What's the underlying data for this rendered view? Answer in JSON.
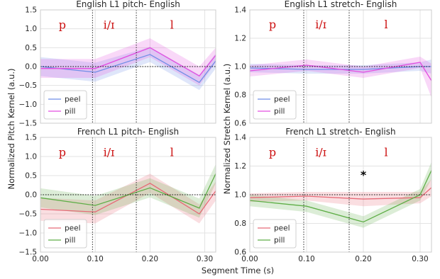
{
  "figure": {
    "ylabel_left": "Normalized Pitch Kernel (a.u.)",
    "ylabel_right": "Normalized Stretch Kernel (a.u.)",
    "xlabel": "Segment Time (s)"
  },
  "colors": {
    "peel_blue": "#6f8ee6",
    "pill_magenta": "#e34de0",
    "peel_red": "#e66b78",
    "pill_green": "#5fae47",
    "segment_label": "#cc1111"
  },
  "chart_data": [
    {
      "type": "line",
      "title": "English L1 pitch- English",
      "xlim": [
        0,
        0.32
      ],
      "ylim": [
        -1.5,
        1.5
      ],
      "xticks": [
        0.0,
        0.1,
        0.2,
        0.3
      ],
      "xtick_labels": [
        "0.00",
        "0.10",
        "0.20",
        "0.30"
      ],
      "yticks": [
        -1.5,
        -1.0,
        -0.5,
        0.0,
        0.5,
        1.0,
        1.5
      ],
      "ytick_labels": [
        "−1.5",
        "−1.0",
        "−0.5",
        "0.0",
        "0.5",
        "1.0",
        "1.5"
      ],
      "show_xtick_labels": false,
      "segments": [
        "p",
        "i/ɪ",
        "l"
      ],
      "segment_x": [
        0.04,
        0.125,
        0.24
      ],
      "segment_y": 1.12,
      "boundaries": [
        0.095,
        0.175
      ],
      "reference_y": 0.0,
      "annotations": [],
      "legend": "lower-left",
      "series": [
        {
          "name": "peel",
          "color": "#6f8ee6",
          "x": [
            0.0,
            0.1,
            0.2,
            0.29,
            0.32
          ],
          "y": [
            0.0,
            -0.15,
            0.32,
            -0.42,
            0.15
          ],
          "band": [
            0.25,
            0.25,
            0.2,
            0.2,
            0.2
          ]
        },
        {
          "name": "pill",
          "color": "#e34de0",
          "x": [
            0.0,
            0.1,
            0.2,
            0.29,
            0.32
          ],
          "y": [
            -0.05,
            -0.05,
            0.5,
            -0.25,
            0.3
          ],
          "band": [
            0.25,
            0.25,
            0.25,
            0.25,
            0.2
          ]
        }
      ]
    },
    {
      "type": "line",
      "title": "English L1 stretch- English",
      "xlim": [
        0,
        0.32
      ],
      "ylim": [
        0.6,
        1.4
      ],
      "xticks": [
        0.0,
        0.1,
        0.2,
        0.3
      ],
      "xtick_labels": [
        "0.00",
        "0.10",
        "0.20",
        "0.30"
      ],
      "yticks": [
        0.6,
        0.8,
        1.0,
        1.2,
        1.4
      ],
      "ytick_labels": [
        "0.6",
        "0.8",
        "1.0",
        "1.2",
        "1.4"
      ],
      "show_xtick_labels": false,
      "segments": [
        "p",
        "i/ɪ",
        "l"
      ],
      "segment_x": [
        0.04,
        0.125,
        0.24
      ],
      "segment_y": 1.3,
      "boundaries": [
        0.095,
        0.175
      ],
      "reference_y": 1.0,
      "annotations": [],
      "legend": "lower-left",
      "series": [
        {
          "name": "peel",
          "color": "#6f8ee6",
          "x": [
            0.0,
            0.1,
            0.2,
            0.3,
            0.32
          ],
          "y": [
            0.99,
            0.98,
            0.98,
            1.0,
            1.0
          ],
          "band": [
            0.03,
            0.03,
            0.03,
            0.03,
            0.05
          ]
        },
        {
          "name": "pill",
          "color": "#e34de0",
          "x": [
            0.0,
            0.1,
            0.2,
            0.3,
            0.32
          ],
          "y": [
            0.97,
            1.01,
            0.96,
            1.03,
            0.9
          ],
          "band": [
            0.04,
            0.04,
            0.04,
            0.04,
            0.12
          ]
        }
      ]
    },
    {
      "type": "line",
      "title": "French L1 pitch- English",
      "xlim": [
        0,
        0.32
      ],
      "ylim": [
        -1.5,
        1.5
      ],
      "xticks": [
        0.0,
        0.1,
        0.2,
        0.3
      ],
      "xtick_labels": [
        "0.00",
        "0.10",
        "0.20",
        "0.30"
      ],
      "yticks": [
        -1.5,
        -1.0,
        -0.5,
        0.0,
        0.5,
        1.0,
        1.5
      ],
      "ytick_labels": [
        "−1.5",
        "−1.0",
        "−0.5",
        "0.0",
        "0.5",
        "1.0",
        "1.5"
      ],
      "show_xtick_labels": true,
      "segments": [
        "p",
        "i/ɪ",
        "l"
      ],
      "segment_x": [
        0.04,
        0.125,
        0.24
      ],
      "segment_y": 1.12,
      "boundaries": [
        0.095,
        0.175
      ],
      "reference_y": 0.0,
      "annotations": [],
      "legend": "lower-left",
      "series": [
        {
          "name": "peel",
          "color": "#e66b78",
          "x": [
            0.0,
            0.1,
            0.2,
            0.29,
            0.32
          ],
          "y": [
            -0.38,
            -0.45,
            0.3,
            -0.5,
            0.1
          ],
          "band": [
            0.3,
            0.3,
            0.25,
            0.25,
            0.25
          ]
        },
        {
          "name": "pill",
          "color": "#5fae47",
          "x": [
            0.0,
            0.1,
            0.2,
            0.29,
            0.32
          ],
          "y": [
            -0.08,
            -0.28,
            0.18,
            -0.35,
            0.55
          ],
          "band": [
            0.25,
            0.25,
            0.25,
            0.25,
            0.25
          ]
        }
      ]
    },
    {
      "type": "line",
      "title": "French L1 stretch- English",
      "xlim": [
        0,
        0.32
      ],
      "ylim": [
        0.6,
        1.4
      ],
      "xticks": [
        0.0,
        0.1,
        0.2,
        0.3
      ],
      "xtick_labels": [
        "0.00",
        "0.10",
        "0.20",
        "0.30"
      ],
      "yticks": [
        0.6,
        0.8,
        1.0,
        1.2,
        1.4
      ],
      "ytick_labels": [
        "0.6",
        "0.8",
        "1.0",
        "1.2",
        "1.4"
      ],
      "show_xtick_labels": true,
      "segments": [
        "p",
        "i/ɪ",
        "l"
      ],
      "segment_x": [
        0.04,
        0.125,
        0.24
      ],
      "segment_y": 1.3,
      "boundaries": [
        0.095,
        0.175
      ],
      "reference_y": 1.0,
      "annotations": [
        {
          "text": "*",
          "x": 0.2,
          "y": 1.14
        }
      ],
      "legend": "lower-left",
      "series": [
        {
          "name": "peel",
          "color": "#e66b78",
          "x": [
            0.0,
            0.1,
            0.2,
            0.3,
            0.32
          ],
          "y": [
            0.98,
            0.99,
            0.97,
            0.98,
            1.05
          ],
          "band": [
            0.03,
            0.03,
            0.05,
            0.04,
            0.06
          ]
        },
        {
          "name": "pill",
          "color": "#5fae47",
          "x": [
            0.0,
            0.1,
            0.2,
            0.3,
            0.32
          ],
          "y": [
            0.96,
            0.92,
            0.81,
            1.0,
            1.17
          ],
          "band": [
            0.04,
            0.04,
            0.04,
            0.04,
            0.06
          ]
        }
      ]
    }
  ]
}
